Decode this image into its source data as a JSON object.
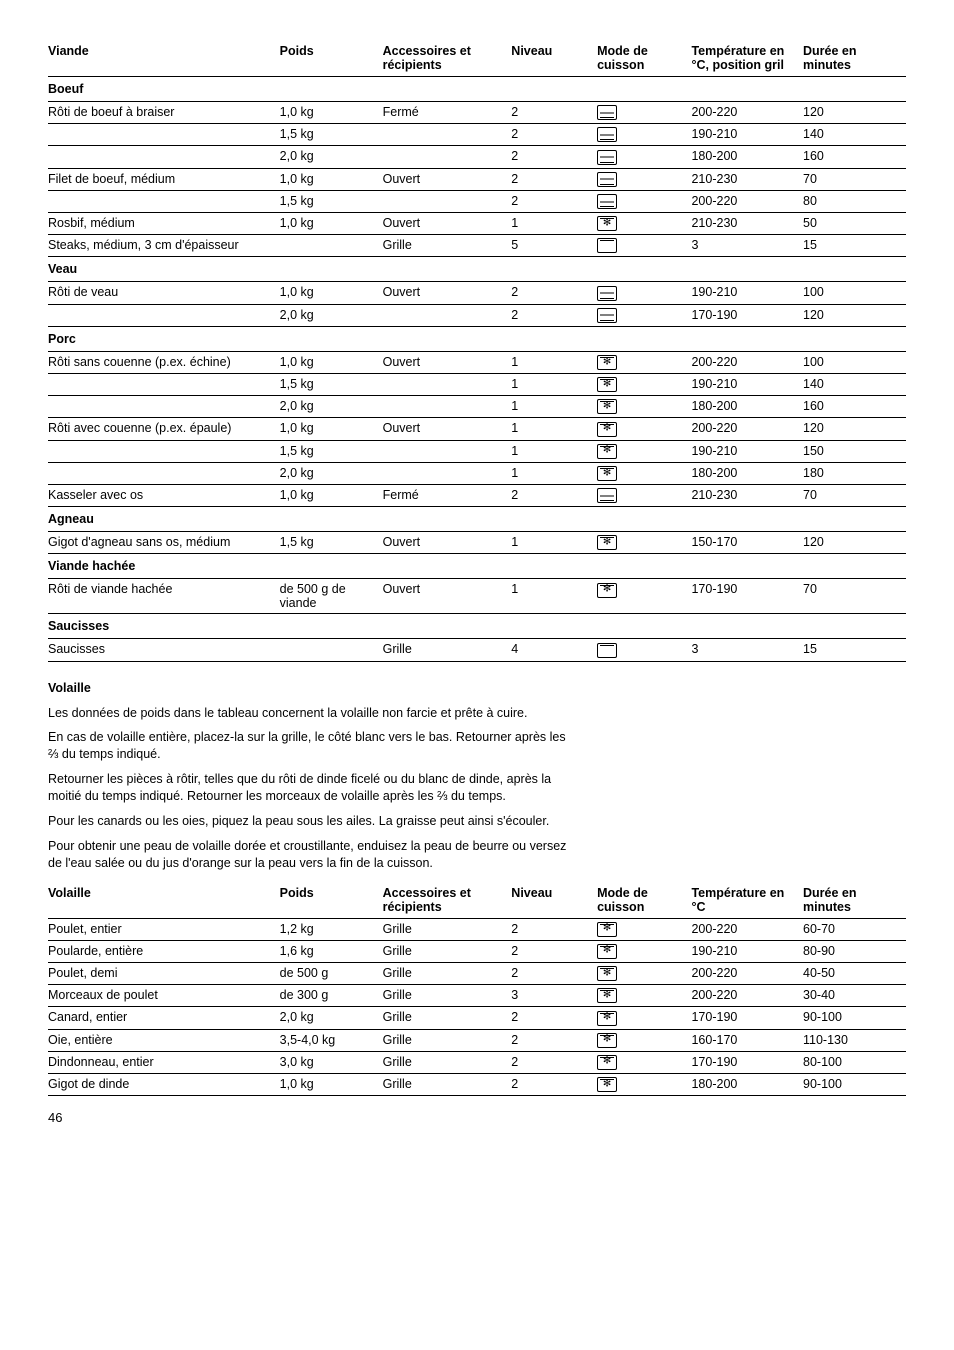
{
  "page_number": "46",
  "viande_table": {
    "headers": [
      "Viande",
      "Poids",
      "Accessoires et récipients",
      "Niveau",
      "Mode de cuisson",
      "Température en °C, position gril",
      "Durée en minutes"
    ],
    "sections": [
      {
        "title": "Boeuf",
        "rows": [
          {
            "dish": "Rôti de boeuf à braiser",
            "poids": "1,0 kg",
            "acc": "Fermé",
            "niv": "2",
            "mode": "conv",
            "temp": "200-220",
            "duree": "120"
          },
          {
            "dish": "",
            "poids": "1,5 kg",
            "acc": "",
            "niv": "2",
            "mode": "conv",
            "temp": "190-210",
            "duree": "140"
          },
          {
            "dish": "",
            "poids": "2,0 kg",
            "acc": "",
            "niv": "2",
            "mode": "conv",
            "temp": "180-200",
            "duree": "160"
          },
          {
            "dish": "Filet de boeuf, médium",
            "poids": "1,0 kg",
            "acc": "Ouvert",
            "niv": "2",
            "mode": "conv",
            "temp": "210-230",
            "duree": "70"
          },
          {
            "dish": "",
            "poids": "1,5 kg",
            "acc": "",
            "niv": "2",
            "mode": "conv",
            "temp": "200-220",
            "duree": "80"
          },
          {
            "dish": "Rosbif, médium",
            "poids": "1,0 kg",
            "acc": "Ouvert",
            "niv": "1",
            "mode": "fan",
            "temp": "210-230",
            "duree": "50"
          },
          {
            "dish": "Steaks, médium, 3 cm d'épaisseur",
            "poids": "",
            "acc": "Grille",
            "niv": "5",
            "mode": "grill",
            "temp": "3",
            "duree": "15"
          }
        ]
      },
      {
        "title": "Veau",
        "rows": [
          {
            "dish": "Rôti de veau",
            "poids": "1,0 kg",
            "acc": "Ouvert",
            "niv": "2",
            "mode": "conv",
            "temp": "190-210",
            "duree": "100"
          },
          {
            "dish": "",
            "poids": "2,0 kg",
            "acc": "",
            "niv": "2",
            "mode": "conv",
            "temp": "170-190",
            "duree": "120"
          }
        ]
      },
      {
        "title": "Porc",
        "rows": [
          {
            "dish": "Rôti sans couenne (p.ex. échine)",
            "poids": "1,0 kg",
            "acc": "Ouvert",
            "niv": "1",
            "mode": "fan",
            "temp": "200-220",
            "duree": "100"
          },
          {
            "dish": "",
            "poids": "1,5 kg",
            "acc": "",
            "niv": "1",
            "mode": "fan",
            "temp": "190-210",
            "duree": "140"
          },
          {
            "dish": "",
            "poids": "2,0 kg",
            "acc": "",
            "niv": "1",
            "mode": "fan",
            "temp": "180-200",
            "duree": "160"
          },
          {
            "dish": "Rôti avec couenne (p.ex. épaule)",
            "poids": "1,0 kg",
            "acc": "Ouvert",
            "niv": "1",
            "mode": "fan",
            "temp": "200-220",
            "duree": "120"
          },
          {
            "dish": "",
            "poids": "1,5 kg",
            "acc": "",
            "niv": "1",
            "mode": "fan",
            "temp": "190-210",
            "duree": "150"
          },
          {
            "dish": "",
            "poids": "2,0 kg",
            "acc": "",
            "niv": "1",
            "mode": "fan",
            "temp": "180-200",
            "duree": "180"
          },
          {
            "dish": "Kasseler avec os",
            "poids": "1,0 kg",
            "acc": "Fermé",
            "niv": "2",
            "mode": "conv",
            "temp": "210-230",
            "duree": "70"
          }
        ]
      },
      {
        "title": "Agneau",
        "rows": [
          {
            "dish": "Gigot d'agneau sans os, médium",
            "poids": "1,5 kg",
            "acc": "Ouvert",
            "niv": "1",
            "mode": "fan",
            "temp": "150-170",
            "duree": "120"
          }
        ]
      },
      {
        "title": "Viande hachée",
        "rows": [
          {
            "dish": "Rôti de viande hachée",
            "poids": "de 500 g de viande",
            "acc": "Ouvert",
            "niv": "1",
            "mode": "fan",
            "temp": "170-190",
            "duree": "70"
          }
        ]
      },
      {
        "title": "Saucisses",
        "rows": [
          {
            "dish": "Saucisses",
            "poids": "",
            "acc": "Grille",
            "niv": "4",
            "mode": "grill",
            "temp": "3",
            "duree": "15"
          }
        ]
      }
    ]
  },
  "volaille_section": {
    "heading": "Volaille",
    "paragraphs": [
      "Les données de poids dans le tableau concernent la volaille non farcie et prête à cuire.",
      "En cas de volaille entière, placez-la sur la grille, le côté blanc vers le bas. Retourner après les ⅔ du temps indiqué.",
      "Retourner les pièces à rôtir, telles que du rôti de dinde ficelé ou du blanc de dinde, après la moitié du temps indiqué. Retourner les morceaux de volaille après les ⅔ du temps.",
      "Pour les canards ou les oies, piquez la peau sous les ailes. La graisse peut ainsi s'écouler.",
      "Pour obtenir une peau de volaille dorée et croustillante, enduisez la peau de beurre ou versez de l'eau salée ou du jus d'orange sur la peau vers la fin de la cuisson."
    ]
  },
  "volaille_table": {
    "headers": [
      "Volaille",
      "Poids",
      "Accessoires et récipients",
      "Niveau",
      "Mode de cuisson",
      "Température en °C",
      "Durée en minutes"
    ],
    "rows": [
      {
        "dish": "Poulet, entier",
        "poids": "1,2 kg",
        "acc": "Grille",
        "niv": "2",
        "mode": "fan",
        "temp": "200-220",
        "duree": "60-70"
      },
      {
        "dish": "Poularde, entière",
        "poids": "1,6 kg",
        "acc": "Grille",
        "niv": "2",
        "mode": "fan",
        "temp": "190-210",
        "duree": "80-90"
      },
      {
        "dish": "Poulet, demi",
        "poids": "de 500 g",
        "acc": "Grille",
        "niv": "2",
        "mode": "fan",
        "temp": "200-220",
        "duree": "40-50"
      },
      {
        "dish": "Morceaux de poulet",
        "poids": "de 300 g",
        "acc": "Grille",
        "niv": "3",
        "mode": "fan",
        "temp": "200-220",
        "duree": "30-40"
      },
      {
        "dish": "Canard, entier",
        "poids": "2,0 kg",
        "acc": "Grille",
        "niv": "2",
        "mode": "fan",
        "temp": "170-190",
        "duree": "90-100"
      },
      {
        "dish": "Oie, entière",
        "poids": "3,5-4,0 kg",
        "acc": "Grille",
        "niv": "2",
        "mode": "fan",
        "temp": "160-170",
        "duree": "110-130"
      },
      {
        "dish": "Dindonneau, entier",
        "poids": "3,0 kg",
        "acc": "Grille",
        "niv": "2",
        "mode": "fan",
        "temp": "170-190",
        "duree": "80-100"
      },
      {
        "dish": "Gigot de dinde",
        "poids": "1,0 kg",
        "acc": "Grille",
        "niv": "2",
        "mode": "fan",
        "temp": "180-200",
        "duree": "90-100"
      }
    ]
  }
}
